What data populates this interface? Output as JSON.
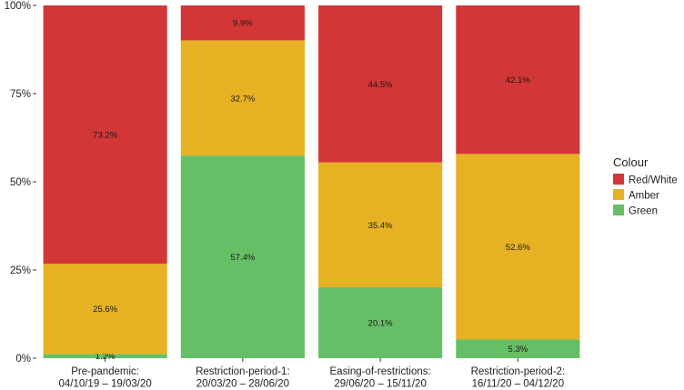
{
  "chart_data": {
    "type": "bar",
    "stacked": true,
    "percent": true,
    "categories": [
      [
        "Pre-pandemic:",
        "04/10/19 – 19/03/20"
      ],
      [
        "Restriction-period-1:",
        "20/03/20 – 28/06/20"
      ],
      [
        "Easing-of-restrictions:",
        "29/06/20 – 15/11/20"
      ],
      [
        "Restriction-period-2:",
        "16/11/20 – 04/12/20"
      ]
    ],
    "series": [
      {
        "name": "Green",
        "color": "#66bf66",
        "values": [
          1.2,
          57.4,
          20.1,
          5.3
        ],
        "labels": [
          "1.2%",
          "57.4%",
          "20.1%",
          "5.3%"
        ]
      },
      {
        "name": "Amber",
        "color": "#e6b223",
        "values": [
          25.6,
          32.7,
          35.4,
          52.6
        ],
        "labels": [
          "25.6%",
          "32.7%",
          "35.4%",
          "52.6%"
        ]
      },
      {
        "name": "Red/White",
        "color": "#d23637",
        "values": [
          73.2,
          9.9,
          44.5,
          42.1
        ],
        "labels": [
          "73.2%",
          "9.9%",
          "44.5%",
          "42.1%"
        ]
      }
    ],
    "legend": {
      "title": "Colour",
      "position": "right",
      "entries": [
        "Red/White",
        "Amber",
        "Green"
      ]
    },
    "yticks": [
      "0%",
      "25%",
      "50%",
      "75%",
      "100%"
    ],
    "ylim": [
      0,
      100
    ],
    "grid": false
  }
}
